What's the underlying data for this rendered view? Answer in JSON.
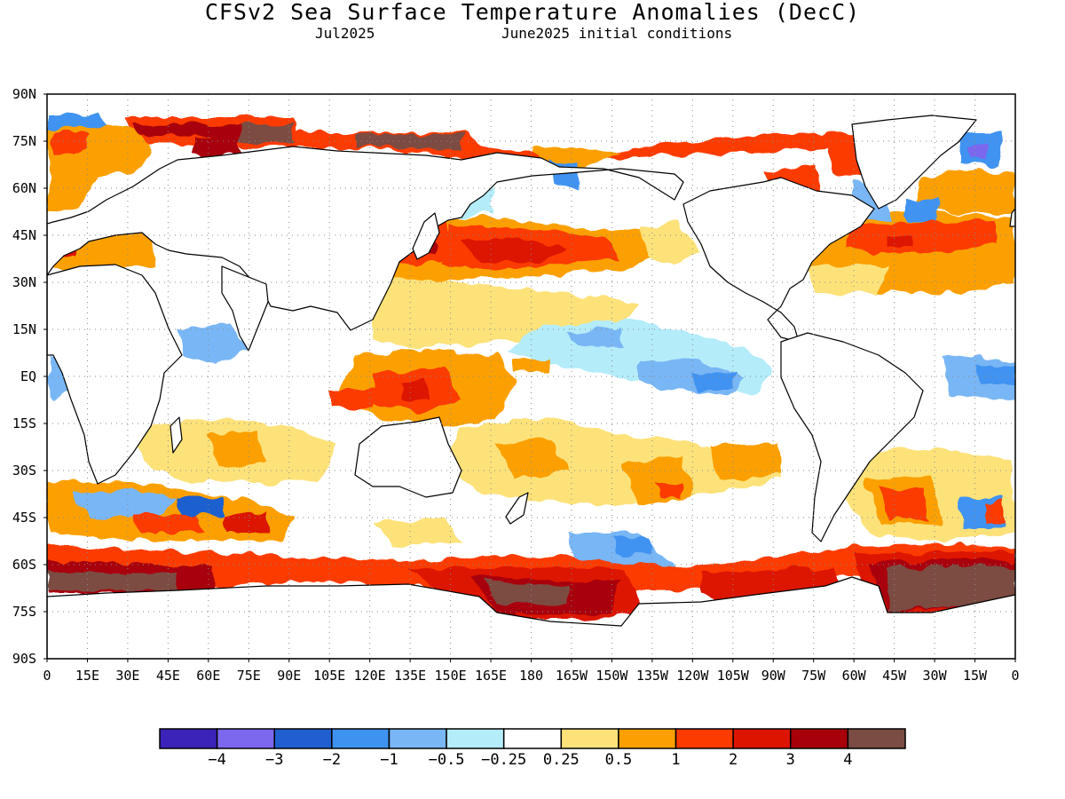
{
  "header": {
    "title": "CFSv2 Sea Surface Temperature Anomalies (DecC)",
    "subtitle_left": "Jul2025",
    "subtitle_right": "June2025 initial conditions"
  },
  "map": {
    "lat_labels": [
      "90N",
      "75N",
      "60N",
      "45N",
      "30N",
      "15N",
      "EQ",
      "15S",
      "30S",
      "45S",
      "60S",
      "75S",
      "90S"
    ],
    "lon_labels": [
      "0",
      "15E",
      "30E",
      "45E",
      "60E",
      "75E",
      "90E",
      "105E",
      "120E",
      "135E",
      "150E",
      "165E",
      "180",
      "165W",
      "150W",
      "135W",
      "120W",
      "105W",
      "90W",
      "75W",
      "60W",
      "45W",
      "30W",
      "15W",
      "0"
    ],
    "grid": true
  },
  "colorbar": {
    "colors": [
      "#3b22b9",
      "#7b68ee",
      "#1f5fcf",
      "#3f93f0",
      "#79b6f5",
      "#b4ecfa",
      "#ffffff",
      "#fde27a",
      "#fba000",
      "#fb3b00",
      "#dc1400",
      "#a8000a",
      "#7b4c43"
    ],
    "labels": [
      "-4",
      "-3",
      "-2",
      "-1",
      "-0.5",
      "-0.25",
      "0.25",
      "0.5",
      "1",
      "2",
      "3",
      "4"
    ]
  },
  "land_color": "#ffffff",
  "ocean_base": "#ffffff"
}
